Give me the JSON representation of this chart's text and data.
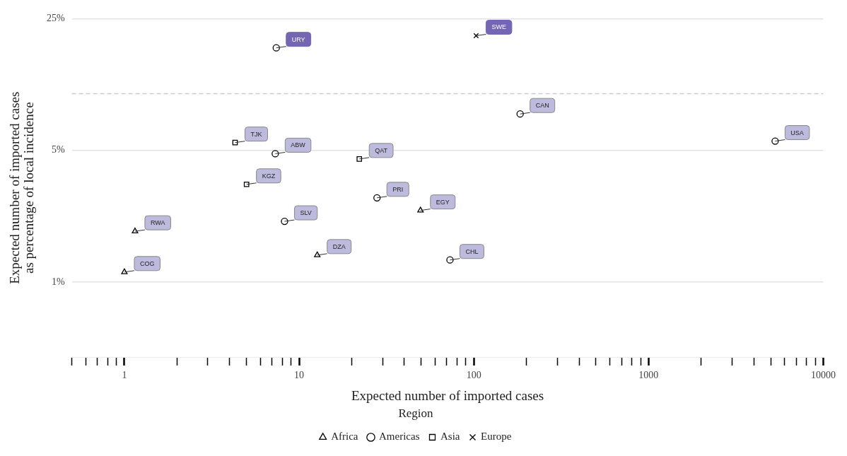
{
  "chart_data": {
    "type": "scatter",
    "xlabel": "Expected number of imported cases",
    "ylabel": "Expected number of imported cases\nas percentage of local incidence",
    "legend_title": "Region",
    "legend": "bottom",
    "grid": "y",
    "log": "xy",
    "xlim": [
      0.5,
      10000
    ],
    "ylim": [
      0.4,
      25
    ],
    "xticks": [
      {
        "value": 0.5,
        "label": null
      },
      {
        "value": 0.6,
        "label": null
      },
      {
        "value": 0.7,
        "label": null
      },
      {
        "value": 0.8,
        "label": null
      },
      {
        "value": 0.9,
        "label": null
      },
      1,
      {
        "value": 2,
        "label": null
      },
      {
        "value": 3,
        "label": null
      },
      {
        "value": 4,
        "label": null
      },
      {
        "value": 5,
        "label": null
      },
      {
        "value": 6,
        "label": null
      },
      {
        "value": 7,
        "label": null
      },
      {
        "value": 8,
        "label": null
      },
      {
        "value": 9,
        "label": null
      },
      10,
      {
        "value": 20,
        "label": null
      },
      {
        "value": 30,
        "label": null
      },
      {
        "value": 40,
        "label": null
      },
      {
        "value": 50,
        "label": null
      },
      {
        "value": 60,
        "label": null
      },
      {
        "value": 70,
        "label": null
      },
      {
        "value": 80,
        "label": null
      },
      {
        "value": 90,
        "label": null
      },
      100,
      {
        "value": 200,
        "label": null
      },
      {
        "value": 300,
        "label": null
      },
      {
        "value": 400,
        "label": null
      },
      {
        "value": 500,
        "label": null
      },
      {
        "value": 600,
        "label": null
      },
      {
        "value": 700,
        "label": null
      },
      {
        "value": 800,
        "label": null
      },
      {
        "value": 900,
        "label": null
      },
      1000,
      {
        "value": 2000,
        "label": null
      },
      {
        "value": 3000,
        "label": null
      },
      {
        "value": 4000,
        "label": null
      },
      {
        "value": 5000,
        "label": null
      },
      {
        "value": 6000,
        "label": null
      },
      {
        "value": 7000,
        "label": null
      },
      {
        "value": 8000,
        "label": null
      },
      {
        "value": 9000,
        "label": null
      },
      10000
    ],
    "yticks": [
      {
        "value": 1,
        "label": "1%"
      },
      {
        "value": 5,
        "label": "5%"
      },
      {
        "value": 25,
        "label": "25%"
      }
    ],
    "ref_lines": [
      {
        "axis": "y",
        "value": 10,
        "color": "#cccccc",
        "line_style": "dashed"
      }
    ],
    "series": [
      {
        "name": "Africa",
        "color": "#000000",
        "marker": "triangle",
        "x": [
          1.15,
          12.7,
          49.5,
          1.0
        ],
        "values": [
          1.86,
          1.39,
          2.4,
          1.13
        ]
      },
      {
        "name": "Americas",
        "color": "#000000",
        "marker": "circle",
        "x": [
          7.4,
          184,
          5300,
          7.3,
          27.9,
          8.25,
          73
        ],
        "values": [
          17.5,
          7.8,
          5.6,
          4.8,
          2.8,
          2.1,
          1.31
        ]
      },
      {
        "name": "Asia",
        "color": "#000000",
        "marker": "square",
        "x": [
          4.3,
          22.1,
          5.0
        ],
        "values": [
          5.5,
          4.5,
          3.3
        ]
      },
      {
        "name": "Europe",
        "color": "#000000",
        "marker": "cross",
        "x": [
          103
        ],
        "values": [
          20.3
        ]
      }
    ],
    "annotations": [
      {
        "text": "RWA",
        "x": 1.15,
        "y": 1.86
      },
      {
        "text": "DZA",
        "x": 12.7,
        "y": 1.39
      },
      {
        "text": "EGY",
        "x": 49.5,
        "y": 2.4
      },
      {
        "text": "COG",
        "x": 1.0,
        "y": 1.13
      },
      {
        "text": "URY",
        "x": 7.4,
        "y": 17.5
      },
      {
        "text": "CAN",
        "x": 184,
        "y": 7.8
      },
      {
        "text": "USA",
        "x": 5300,
        "y": 5.6
      },
      {
        "text": "ABW",
        "x": 7.3,
        "y": 4.8
      },
      {
        "text": "PRI",
        "x": 27.9,
        "y": 2.8
      },
      {
        "text": "SLV",
        "x": 8.25,
        "y": 2.1
      },
      {
        "text": "CHL",
        "x": 73,
        "y": 1.31
      },
      {
        "text": "TJK",
        "x": 4.3,
        "y": 5.5
      },
      {
        "text": "QAT",
        "x": 22.1,
        "y": 4.5
      },
      {
        "text": "KGZ",
        "x": 5.0,
        "y": 3.3
      },
      {
        "text": "SWE",
        "x": 103,
        "y": 20.3
      }
    ]
  }
}
